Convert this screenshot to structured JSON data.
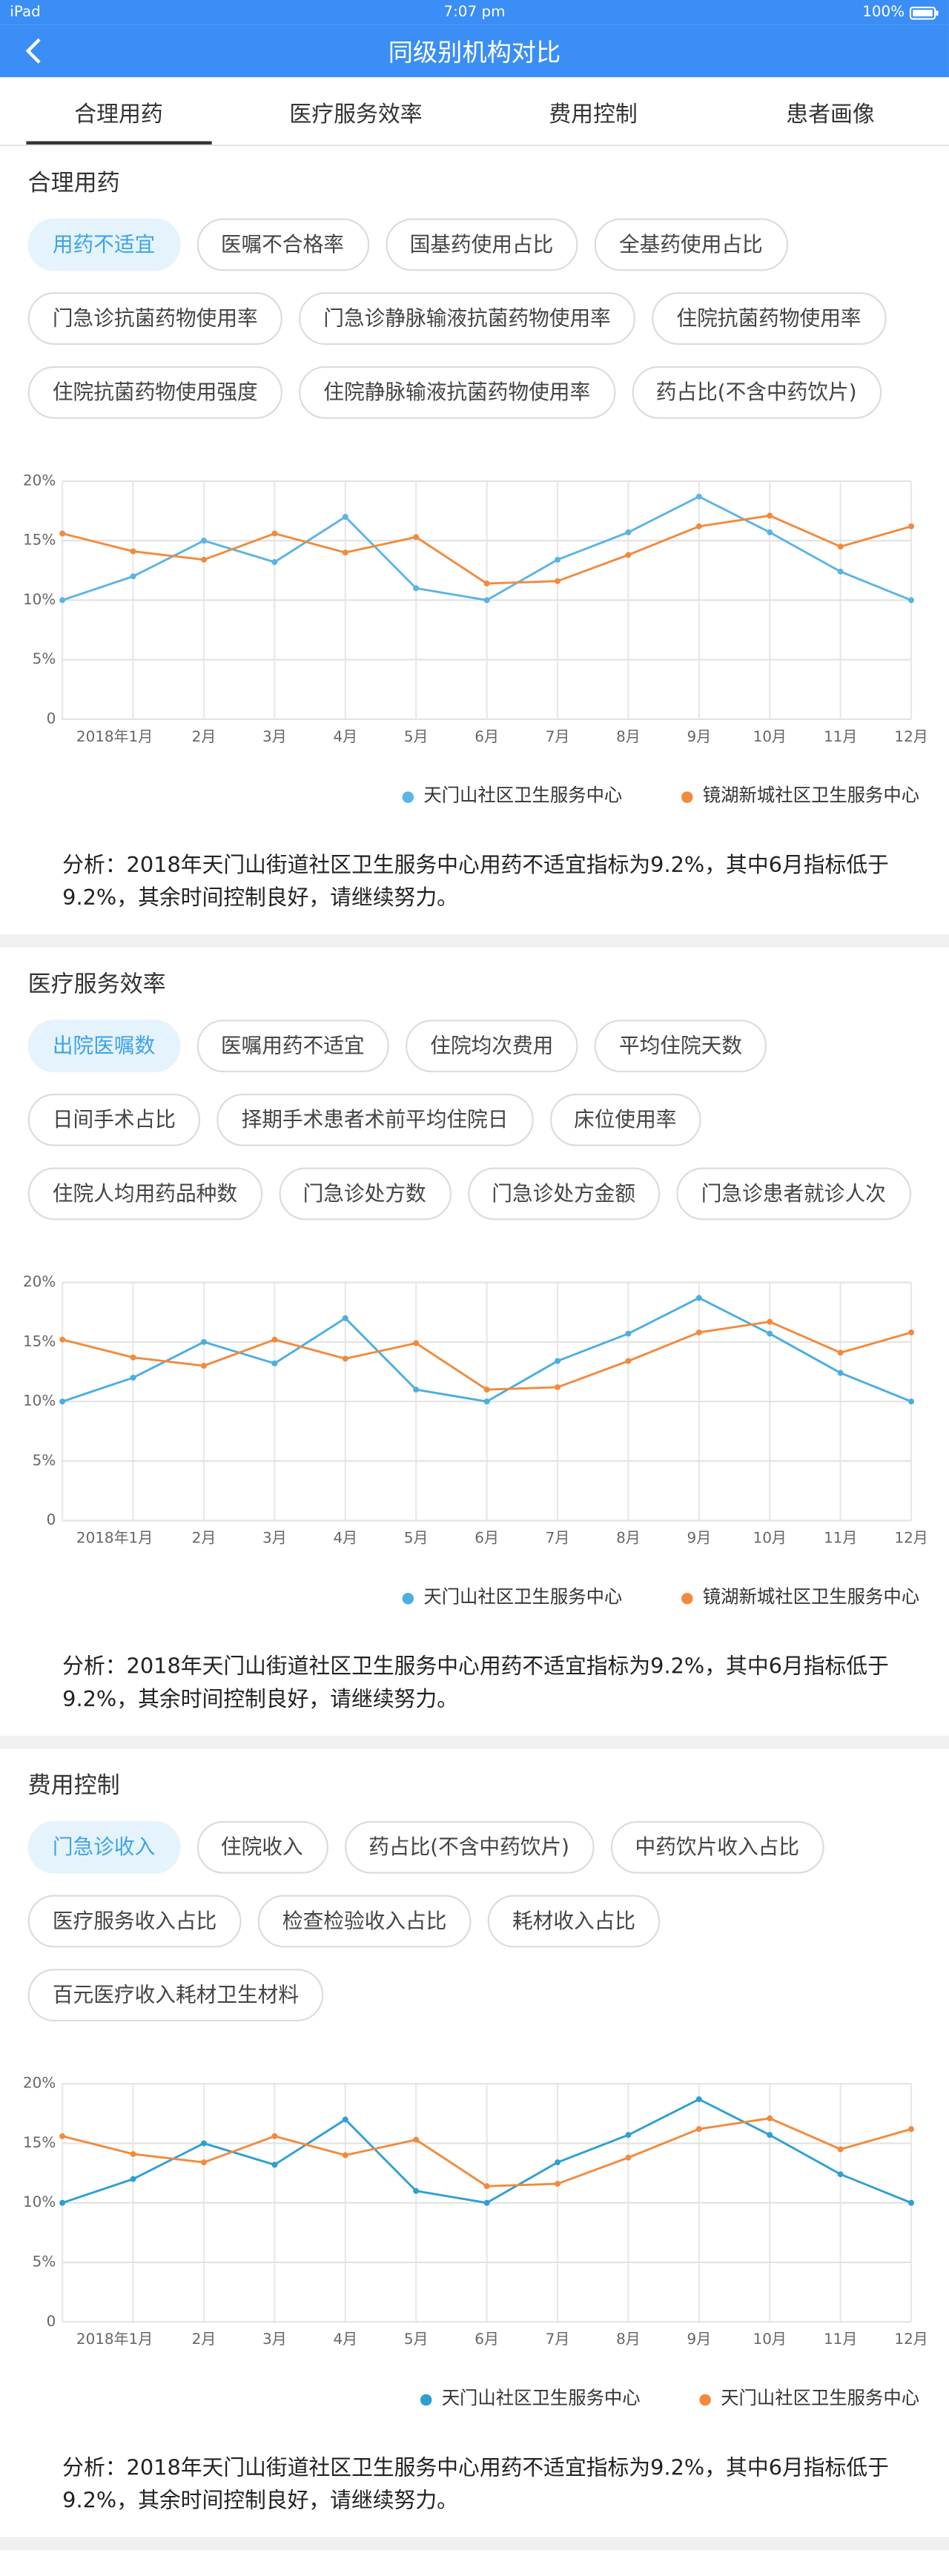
{
  "status_bar": {
    "device": "iPad",
    "time": "7:07 pm",
    "battery": "100%"
  },
  "nav": {
    "title": "同级别机构对比"
  },
  "tabs": {
    "items": [
      "合理用药",
      "医疗服务效率",
      "费用控制",
      "患者画像"
    ],
    "selected": 0
  },
  "sections": [
    {
      "title": "合理用药",
      "selected": 0,
      "chips": [
        "用药不适宜",
        "医嘱不合格率",
        "国基药使用占比",
        "全基药使用占比",
        "门急诊抗菌药物使用率",
        "门急诊静脉输液抗菌药物使用率",
        "住院抗菌药物使用率",
        "住院抗菌药物使用强度",
        "住院静脉输液抗菌药物使用率",
        "药占比(不含中药饮片)"
      ],
      "analysis": "分析：2018年天门山街道社区卫生服务中心用药不适宜指标为9.2%，其中6月指标低于9.2%，其余时间控制良好，请继续努力。"
    },
    {
      "title": "医疗服务效率",
      "selected": 0,
      "chips": [
        "出院医嘱数",
        "医嘱用药不适宜",
        "住院均次费用",
        "平均住院天数",
        "日间手术占比",
        "择期手术患者术前平均住院日",
        "床位使用率",
        "住院人均用药品种数",
        "门急诊处方数",
        "门急诊处方金额",
        "门急诊患者就诊人次"
      ],
      "analysis": "分析：2018年天门山街道社区卫生服务中心用药不适宜指标为9.2%，其中6月指标低于9.2%，其余时间控制良好，请继续努力。"
    },
    {
      "title": "费用控制",
      "selected": 0,
      "chips": [
        "门急诊收入",
        "住院收入",
        "药占比(不含中药饮片)",
        "中药饮片收入占比",
        "医疗服务收入占比",
        "检查检验收入占比",
        "耗材收入占比",
        "百元医疗收入耗材卫生材料"
      ],
      "analysis": "分析：2018年天门山街道社区卫生服务中心用药不适宜指标为9.2%，其中6月指标低于9.2%，其余时间控制良好，请继续努力。"
    }
  ],
  "chart_data": [
    {
      "type": "line",
      "grid": true,
      "categories": [
        null,
        "2018年1月",
        "2月",
        "3月",
        "4月",
        "5月",
        "6月",
        "7月",
        "8月",
        "9月",
        "10月",
        "11月",
        "12月"
      ],
      "ylim": [
        0,
        20
      ],
      "yticks": [
        0,
        {
          "value": 5,
          "label": "5%"
        },
        {
          "value": 10,
          "label": "10%"
        },
        {
          "value": 15,
          "label": "15%"
        },
        {
          "value": 20,
          "label": "20%"
        }
      ],
      "series": [
        {
          "name": "天门山社区卫生服务中心",
          "color": "#5ab4e5",
          "values": [
            10,
            12,
            15,
            13.2,
            17,
            11,
            10,
            13.4,
            15.7,
            18.7,
            15.7,
            12.4,
            10
          ]
        },
        {
          "name": "镜湖新城社区卫生服务中心",
          "color": "#f28a3d",
          "values": [
            15.6,
            14.1,
            13.4,
            15.6,
            14,
            15.3,
            11.4,
            11.6,
            13.8,
            16.2,
            17.1,
            14.5,
            16.2
          ]
        }
      ]
    },
    {
      "type": "line",
      "grid": true,
      "categories": [
        null,
        "2018年1月",
        "2月",
        "3月",
        "4月",
        "5月",
        "6月",
        "7月",
        "8月",
        "9月",
        "10月",
        "11月",
        "12月"
      ],
      "ylim": [
        0,
        20
      ],
      "yticks": [
        0,
        {
          "value": 5,
          "label": "5%"
        },
        {
          "value": 10,
          "label": "10%"
        },
        {
          "value": 15,
          "label": "15%"
        },
        {
          "value": 20,
          "label": "20%"
        }
      ],
      "series": [
        {
          "name": "天门山社区卫生服务中心",
          "color": "#4aaee2",
          "values": [
            10,
            12,
            15,
            13.2,
            17,
            11,
            10,
            13.4,
            15.7,
            18.7,
            15.7,
            12.4,
            10
          ]
        },
        {
          "name": "镜湖新城社区卫生服务中心",
          "color": "#f28a3d",
          "values": [
            15.2,
            13.7,
            13,
            15.2,
            13.6,
            14.9,
            11,
            11.2,
            13.4,
            15.8,
            16.7,
            14.1,
            15.8
          ]
        }
      ]
    },
    {
      "type": "line",
      "grid": true,
      "categories": [
        null,
        "2018年1月",
        "2月",
        "3月",
        "4月",
        "5月",
        "6月",
        "7月",
        "8月",
        "9月",
        "10月",
        "11月",
        "12月"
      ],
      "ylim": [
        0,
        20
      ],
      "yticks": [
        0,
        {
          "value": 5,
          "label": "5%"
        },
        {
          "value": 10,
          "label": "10%"
        },
        {
          "value": 15,
          "label": "15%"
        },
        {
          "value": 20,
          "label": "20%"
        }
      ],
      "series": [
        {
          "name": "天门山社区卫生服务中心",
          "color": "#2f9fd3",
          "values": [
            10,
            12,
            15,
            13.2,
            17,
            11,
            10,
            13.4,
            15.7,
            18.7,
            15.7,
            12.4,
            10
          ]
        },
        {
          "name": "天门山社区卫生服务中心",
          "color": "#f28a3d",
          "values": [
            15.6,
            14.1,
            13.4,
            15.6,
            14,
            15.3,
            11.4,
            11.6,
            13.8,
            16.2,
            17.1,
            14.5,
            16.2
          ]
        }
      ]
    }
  ]
}
